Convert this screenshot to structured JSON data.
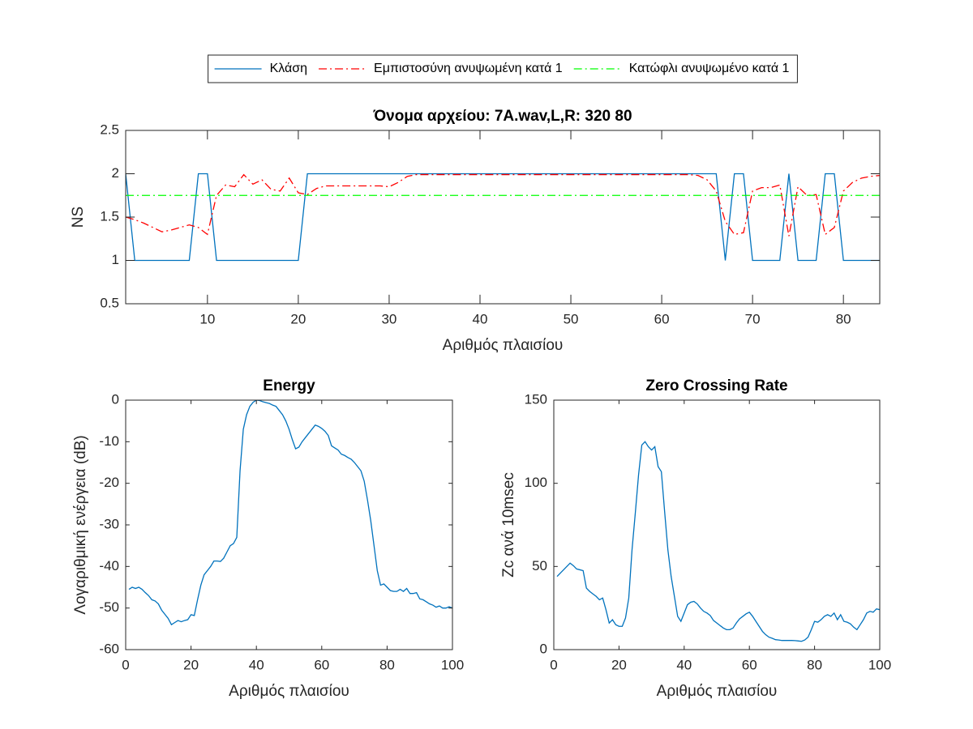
{
  "chart_data": [
    {
      "type": "line",
      "title": "Όνομα αρχείου: 7A.wav,L,R: 320 80",
      "xlabel": "Αριθμός πλαισίου",
      "ylabel": "NS",
      "x": [
        1,
        2,
        3,
        4,
        5,
        6,
        7,
        8,
        9,
        10,
        11,
        12,
        13,
        14,
        15,
        16,
        17,
        18,
        19,
        20,
        21,
        22,
        23,
        24,
        25,
        26,
        27,
        28,
        29,
        30,
        31,
        32,
        33,
        34,
        35,
        36,
        37,
        38,
        39,
        40,
        41,
        42,
        43,
        44,
        45,
        46,
        47,
        48,
        49,
        50,
        51,
        52,
        53,
        54,
        55,
        56,
        57,
        58,
        59,
        60,
        61,
        62,
        63,
        64,
        65,
        66,
        67,
        68,
        69,
        70,
        71,
        72,
        73,
        74,
        75,
        76,
        77,
        78,
        79,
        80,
        81,
        82,
        83,
        84
      ],
      "series": [
        {
          "name": "Κλάση",
          "color": "#0072bd",
          "style": "solid",
          "values": [
            2,
            1,
            1,
            1,
            1,
            1,
            1,
            1,
            2,
            2,
            1,
            1,
            1,
            1,
            1,
            1,
            1,
            1,
            1,
            1,
            2,
            2,
            2,
            2,
            2,
            2,
            2,
            2,
            2,
            2,
            2,
            2,
            2,
            2,
            2,
            2,
            2,
            2,
            2,
            2,
            2,
            2,
            2,
            2,
            2,
            2,
            2,
            2,
            2,
            2,
            2,
            2,
            2,
            2,
            2,
            2,
            2,
            2,
            2,
            2,
            2,
            2,
            2,
            2,
            2,
            2,
            1,
            2,
            2,
            1,
            1,
            1,
            1,
            2,
            1,
            1,
            1,
            2,
            2,
            1,
            1,
            1,
            1,
            1
          ]
        },
        {
          "name": "Εμπιστοσύνη ανυψωμένη κατά 1",
          "color": "#ff0000",
          "style": "dashdot",
          "values": [
            1.5,
            1.47,
            1.43,
            1.38,
            1.33,
            1.35,
            1.38,
            1.41,
            1.38,
            1.3,
            1.75,
            1.87,
            1.85,
            1.99,
            1.88,
            1.93,
            1.82,
            1.8,
            1.95,
            1.78,
            1.76,
            1.83,
            1.86,
            1.86,
            1.86,
            1.86,
            1.86,
            1.86,
            1.86,
            1.85,
            1.9,
            1.97,
            1.99,
            1.99,
            1.99,
            1.99,
            1.99,
            1.99,
            1.99,
            1.99,
            1.99,
            1.99,
            1.99,
            1.99,
            1.99,
            1.99,
            1.99,
            1.99,
            1.99,
            1.99,
            1.99,
            1.99,
            1.99,
            1.99,
            1.99,
            1.99,
            1.99,
            1.99,
            1.99,
            1.99,
            1.99,
            1.99,
            1.99,
            1.98,
            1.93,
            1.8,
            1.45,
            1.3,
            1.32,
            1.8,
            1.84,
            1.84,
            1.87,
            1.28,
            1.85,
            1.75,
            1.76,
            1.3,
            1.38,
            1.8,
            1.9,
            1.95,
            1.97,
            1.98
          ]
        },
        {
          "name": "Κατώφλι ανυψωμένο κατά 1",
          "color": "#00ff00",
          "style": "dashdot",
          "values": [
            1.75,
            1.75,
            1.75,
            1.75,
            1.75,
            1.75,
            1.75,
            1.75,
            1.75,
            1.75,
            1.75,
            1.75,
            1.75,
            1.75,
            1.75,
            1.75,
            1.75,
            1.75,
            1.75,
            1.75,
            1.75,
            1.75,
            1.75,
            1.75,
            1.75,
            1.75,
            1.75,
            1.75,
            1.75,
            1.75,
            1.75,
            1.75,
            1.75,
            1.75,
            1.75,
            1.75,
            1.75,
            1.75,
            1.75,
            1.75,
            1.75,
            1.75,
            1.75,
            1.75,
            1.75,
            1.75,
            1.75,
            1.75,
            1.75,
            1.75,
            1.75,
            1.75,
            1.75,
            1.75,
            1.75,
            1.75,
            1.75,
            1.75,
            1.75,
            1.75,
            1.75,
            1.75,
            1.75,
            1.75,
            1.75,
            1.75,
            1.75,
            1.75,
            1.75,
            1.75,
            1.75,
            1.75,
            1.75,
            1.75,
            1.75,
            1.75,
            1.75,
            1.75,
            1.75,
            1.75,
            1.75,
            1.75,
            1.75,
            1.75
          ]
        }
      ],
      "xlim": [
        1,
        84
      ],
      "xticks": [
        10,
        20,
        30,
        40,
        50,
        60,
        70,
        80
      ],
      "ylim": [
        0.5,
        2.5
      ],
      "yticks": [
        0.5,
        1,
        1.5,
        2,
        2.5
      ],
      "legend": "top"
    },
    {
      "type": "line",
      "title": "Energy",
      "xlabel": "Αριθμός πλαισίου",
      "ylabel": "Λογαριθμική ενέργεια (dB)",
      "x": [
        1,
        2,
        3,
        4,
        5,
        6,
        7,
        8,
        9,
        10,
        11,
        12,
        13,
        14,
        15,
        16,
        17,
        18,
        19,
        20,
        21,
        22,
        23,
        24,
        25,
        26,
        27,
        28,
        29,
        30,
        31,
        32,
        33,
        34,
        35,
        36,
        37,
        38,
        39,
        40,
        41,
        42,
        43,
        44,
        45,
        46,
        47,
        48,
        49,
        50,
        51,
        52,
        53,
        54,
        55,
        56,
        57,
        58,
        59,
        60,
        61,
        62,
        63,
        64,
        65,
        66,
        67,
        68,
        69,
        70,
        71,
        72,
        73,
        74,
        75,
        76,
        77,
        78,
        79,
        80,
        81,
        82,
        83,
        84,
        85,
        86,
        87,
        88,
        89,
        90,
        91,
        92,
        93,
        94,
        95,
        96,
        97,
        98,
        99,
        100
      ],
      "series": [
        {
          "color": "#0072bd",
          "style": "solid",
          "values": [
            -45.5,
            -45,
            -45.3,
            -45,
            -45.5,
            -46.3,
            -47,
            -48,
            -48.3,
            -49,
            -50.5,
            -51.5,
            -52.5,
            -54,
            -53.5,
            -53,
            -53.3,
            -53,
            -52.8,
            -51.6,
            -51.8,
            -48,
            -44.5,
            -42,
            -41,
            -40,
            -38.7,
            -38.7,
            -38.8,
            -38,
            -36.5,
            -35,
            -34.5,
            -33,
            -17,
            -7,
            -3.5,
            -1.5,
            -0.5,
            0,
            -0.1,
            -0.4,
            -0.6,
            -0.8,
            -1.2,
            -1.5,
            -2.5,
            -3.5,
            -5,
            -7,
            -9.5,
            -11.7,
            -11.3,
            -10,
            -9,
            -8,
            -7,
            -6,
            -6.3,
            -6.8,
            -7.5,
            -8.5,
            -11,
            -11.5,
            -12,
            -13,
            -13.3,
            -13.8,
            -14.2,
            -15,
            -16,
            -17,
            -19.5,
            -24,
            -29,
            -35,
            -41,
            -44.5,
            -44.2,
            -45,
            -45.8,
            -46,
            -46,
            -45.5,
            -46,
            -45.3,
            -46.5,
            -46.5,
            -46.3,
            -47.8,
            -48,
            -48.5,
            -49,
            -49.3,
            -49.8,
            -49.5,
            -50,
            -50,
            -49.7,
            -50
          ]
        }
      ],
      "xlim": [
        0,
        100
      ],
      "xticks": [
        0,
        20,
        40,
        60,
        80,
        100
      ],
      "ylim": [
        -60,
        0
      ],
      "yticks": [
        -60,
        -50,
        -40,
        -30,
        -20,
        -10,
        0
      ]
    },
    {
      "type": "line",
      "title": "Zero Crossing Rate",
      "xlabel": "Αριθμός πλαισίου",
      "ylabel": "Zc ανά 10msec",
      "x": [
        1,
        2,
        3,
        4,
        5,
        6,
        7,
        8,
        9,
        10,
        11,
        12,
        13,
        14,
        15,
        16,
        17,
        18,
        19,
        20,
        21,
        22,
        23,
        24,
        25,
        26,
        27,
        28,
        29,
        30,
        31,
        32,
        33,
        34,
        35,
        36,
        37,
        38,
        39,
        40,
        41,
        42,
        43,
        44,
        45,
        46,
        47,
        48,
        49,
        50,
        51,
        52,
        53,
        54,
        55,
        56,
        57,
        58,
        59,
        60,
        61,
        62,
        63,
        64,
        65,
        66,
        67,
        68,
        69,
        70,
        71,
        72,
        73,
        74,
        75,
        76,
        77,
        78,
        79,
        80,
        81,
        82,
        83,
        84,
        85,
        86,
        87,
        88,
        89,
        90,
        91,
        92,
        93,
        94,
        95,
        96,
        97,
        98,
        99,
        100
      ],
      "series": [
        {
          "color": "#0072bd",
          "style": "solid",
          "values": [
            44,
            46,
            48,
            50,
            52,
            50.5,
            48.5,
            48,
            47.5,
            37,
            35,
            33.5,
            32,
            30,
            31,
            24,
            16,
            18,
            15,
            14,
            14,
            19,
            31,
            60,
            82,
            105,
            123,
            125,
            122,
            120,
            122,
            110,
            107,
            83,
            60,
            44,
            32,
            20,
            17,
            22,
            27,
            28.5,
            29,
            27.5,
            25,
            23,
            22,
            20.5,
            17.5,
            16,
            14.5,
            13,
            12,
            12,
            13,
            16,
            18.5,
            20,
            21.5,
            22.5,
            20,
            17,
            14,
            11,
            9,
            7.5,
            6.8,
            6,
            5.8,
            5.5,
            5.5,
            5.5,
            5.5,
            5.4,
            5.2,
            5,
            5.8,
            7.5,
            12,
            17,
            16.5,
            18,
            20,
            21,
            20,
            22,
            18,
            21,
            17,
            16.5,
            15.5,
            13.5,
            12,
            15,
            18,
            22,
            23,
            22.5,
            24.5,
            24
          ]
        }
      ],
      "xlim": [
        0,
        100
      ],
      "xticks": [
        0,
        20,
        40,
        60,
        80,
        100
      ],
      "ylim": [
        0,
        150
      ],
      "yticks": [
        0,
        50,
        100,
        150
      ]
    }
  ]
}
